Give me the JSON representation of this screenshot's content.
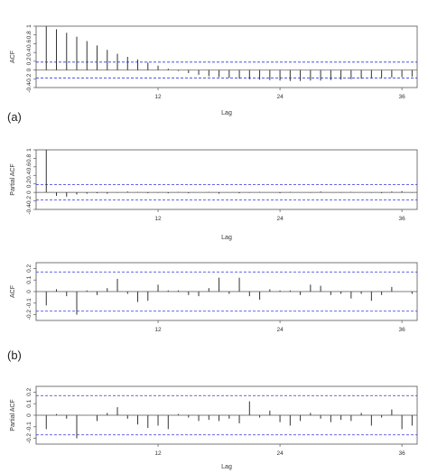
{
  "panel_labels": {
    "a": "(a)",
    "b": "(b)"
  },
  "colors": {
    "bars": "#333333",
    "confidence_band": "#3333dd",
    "frame": "#555555"
  },
  "chart_data": [
    {
      "type": "bar",
      "xlabel": "Lag",
      "ylabel": "ACF",
      "xlim": [
        0,
        37.5
      ],
      "ylim": [
        -0.4,
        1.0
      ],
      "xticks": [
        12,
        24,
        36
      ],
      "yticks": [
        -0.4,
        -0.2,
        0,
        0.2,
        0.4,
        0.6,
        0.8,
        1.0
      ],
      "conf_band": [
        -0.18,
        0.18
      ],
      "lags": [
        1,
        2,
        3,
        4,
        5,
        6,
        7,
        8,
        9,
        10,
        11,
        12,
        13,
        14,
        15,
        16,
        17,
        18,
        19,
        20,
        21,
        22,
        23,
        24,
        25,
        26,
        27,
        28,
        29,
        30,
        31,
        32,
        33,
        34,
        35,
        36,
        37
      ],
      "values": [
        1.0,
        0.93,
        0.85,
        0.76,
        0.66,
        0.56,
        0.46,
        0.37,
        0.3,
        0.24,
        0.17,
        0.1,
        0.03,
        -0.02,
        -0.07,
        -0.11,
        -0.14,
        -0.16,
        -0.18,
        -0.2,
        -0.21,
        -0.22,
        -0.23,
        -0.24,
        -0.25,
        -0.25,
        -0.24,
        -0.24,
        -0.23,
        -0.22,
        -0.21,
        -0.2,
        -0.19,
        -0.18,
        -0.17,
        -0.16,
        -0.15
      ]
    },
    {
      "type": "bar",
      "xlabel": "Lag",
      "ylabel": "Partial ACF",
      "xlim": [
        0,
        37.5
      ],
      "ylim": [
        -0.4,
        1.0
      ],
      "xticks": [
        12,
        24,
        36
      ],
      "yticks": [
        -0.4,
        -0.2,
        0,
        0.2,
        0.4,
        0.6,
        0.8,
        1.0
      ],
      "conf_band": [
        -0.18,
        0.18
      ],
      "lags": [
        1,
        2,
        3,
        4,
        5,
        6,
        7,
        8,
        9,
        10,
        11,
        12,
        13,
        14,
        15,
        16,
        17,
        18,
        19,
        20,
        21,
        22,
        23,
        24,
        25,
        26,
        27,
        28,
        29,
        30,
        31,
        32,
        33,
        34,
        35,
        36,
        37
      ],
      "values": [
        1.0,
        -0.08,
        -0.1,
        -0.05,
        -0.03,
        -0.02,
        -0.03,
        -0.01,
        0.02,
        0.01,
        -0.02,
        -0.01,
        -0.02,
        0.01,
        -0.02,
        0.0,
        0.01,
        -0.03,
        0.0,
        -0.02,
        -0.01,
        0.01,
        0.0,
        -0.02,
        0.01,
        0.0,
        -0.01,
        0.02,
        0.0,
        -0.01,
        0.01,
        0.0,
        -0.01,
        -0.02,
        0.02,
        0.03,
        -0.01
      ]
    },
    {
      "type": "bar",
      "xlabel": "",
      "ylabel": "ACF",
      "xlim": [
        0,
        37.5
      ],
      "ylim": [
        -0.25,
        0.25
      ],
      "xticks": [
        12,
        24,
        36
      ],
      "yticks": [
        -0.2,
        -0.1,
        0.0,
        0.1,
        0.2
      ],
      "conf_band": [
        -0.17,
        0.17
      ],
      "lags": [
        1,
        2,
        3,
        4,
        5,
        6,
        7,
        8,
        9,
        10,
        11,
        12,
        13,
        14,
        15,
        16,
        17,
        18,
        19,
        20,
        21,
        22,
        23,
        24,
        25,
        26,
        27,
        28,
        29,
        30,
        31,
        32,
        33,
        34,
        35,
        36,
        37
      ],
      "values": [
        -0.12,
        0.02,
        -0.04,
        -0.2,
        0.01,
        -0.03,
        0.03,
        0.11,
        -0.02,
        -0.09,
        -0.08,
        0.06,
        0.01,
        0.01,
        -0.03,
        -0.04,
        0.03,
        0.12,
        -0.02,
        0.12,
        -0.04,
        -0.07,
        0.02,
        0.01,
        0.01,
        -0.03,
        0.06,
        0.05,
        -0.03,
        -0.02,
        -0.06,
        -0.02,
        -0.08,
        -0.03,
        0.04,
        0.0,
        -0.02
      ]
    },
    {
      "type": "bar",
      "xlabel": "Lag",
      "ylabel": "Partial ACF",
      "xlim": [
        0,
        37.5
      ],
      "ylim": [
        -0.25,
        0.25
      ],
      "xticks": [
        12,
        24,
        36
      ],
      "yticks": [
        -0.2,
        -0.1,
        0.0,
        0.1,
        0.2
      ],
      "conf_band": [
        -0.17,
        0.17
      ],
      "lags": [
        1,
        2,
        3,
        4,
        5,
        6,
        7,
        8,
        9,
        10,
        11,
        12,
        13,
        14,
        15,
        16,
        17,
        18,
        19,
        20,
        21,
        22,
        23,
        24,
        25,
        26,
        27,
        28,
        29,
        30,
        31,
        32,
        33,
        34,
        35,
        36,
        37
      ],
      "values": [
        -0.12,
        0.01,
        -0.03,
        -0.2,
        0.0,
        -0.05,
        0.02,
        0.07,
        -0.03,
        -0.08,
        -0.11,
        -0.09,
        -0.12,
        0.01,
        -0.02,
        -0.05,
        -0.04,
        -0.05,
        -0.03,
        -0.07,
        0.12,
        -0.02,
        0.04,
        -0.06,
        -0.09,
        -0.05,
        0.02,
        -0.03,
        -0.06,
        -0.04,
        -0.05,
        0.02,
        -0.09,
        -0.02,
        0.05,
        -0.12,
        -0.09
      ]
    }
  ]
}
